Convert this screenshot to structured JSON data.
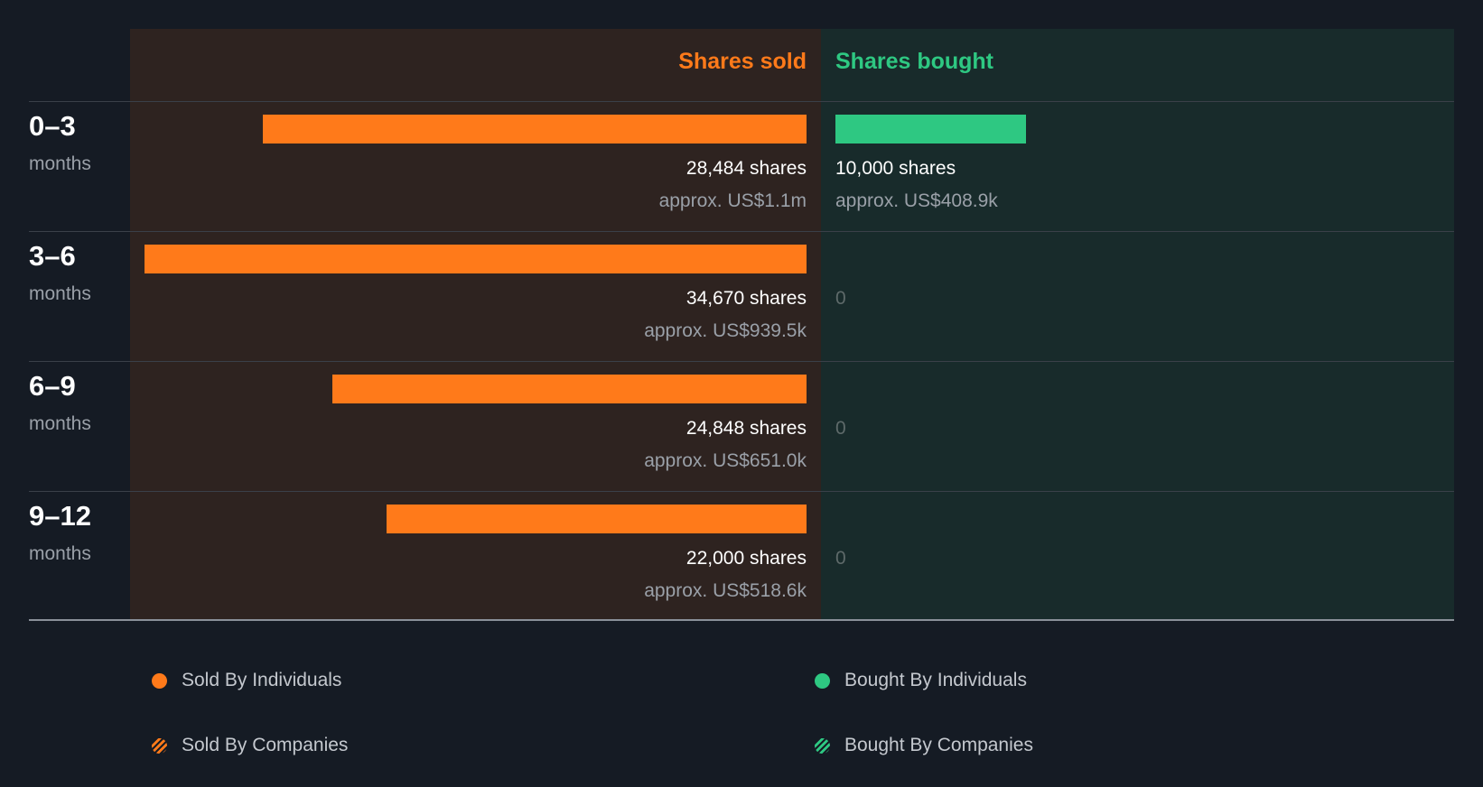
{
  "chart_data": {
    "type": "bar",
    "orientation": "horizontal-diverging",
    "headers": {
      "sold": "Shares sold",
      "bought": "Shares bought"
    },
    "max_shares": 34670,
    "categories": [
      {
        "range": "0–3",
        "unit": "months"
      },
      {
        "range": "3–6",
        "unit": "months"
      },
      {
        "range": "6–9",
        "unit": "months"
      },
      {
        "range": "9–12",
        "unit": "months"
      }
    ],
    "series": [
      {
        "name": "Shares sold",
        "values": [
          28484,
          34670,
          24848,
          22000
        ],
        "labels": [
          "28,484 shares",
          "34,670 shares",
          "24,848 shares",
          "22,000 shares"
        ],
        "value_labels": [
          "approx. US$1.1m",
          "approx. US$939.5k",
          "approx. US$651.0k",
          "approx. US$518.6k"
        ]
      },
      {
        "name": "Shares bought",
        "values": [
          10000,
          0,
          0,
          0
        ],
        "labels": [
          "10,000 shares",
          "0",
          "0",
          "0"
        ],
        "value_labels": [
          "approx. US$408.9k",
          "",
          "",
          ""
        ]
      }
    ],
    "legend": [
      {
        "label": "Sold By Individuals",
        "style": "solid-orange"
      },
      {
        "label": "Bought By Individuals",
        "style": "solid-green"
      },
      {
        "label": "Sold By Companies",
        "style": "hatched-orange"
      },
      {
        "label": "Bought By Companies",
        "style": "hatched-green"
      }
    ],
    "colors": {
      "sold": "#ff7a1a",
      "bought": "#2ec882"
    }
  }
}
